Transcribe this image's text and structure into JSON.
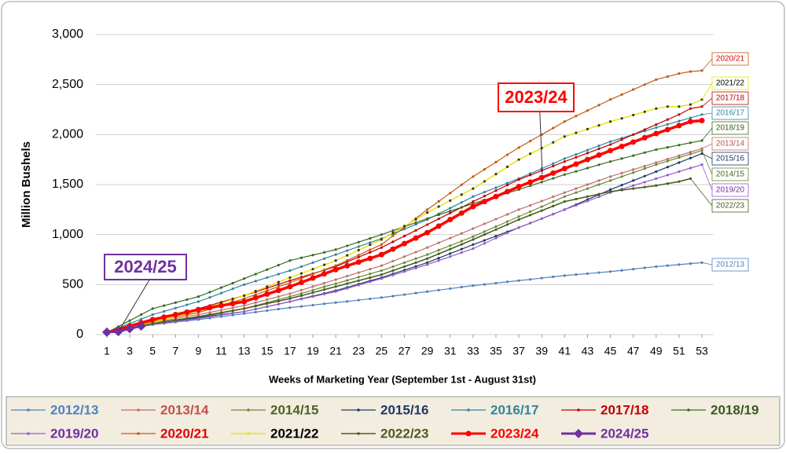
{
  "chart_data": {
    "type": "line",
    "y_label": "Million Bushels",
    "x_label": "Weeks of Marketing Year (September 1st - August 31st)",
    "xlim": [
      0,
      54
    ],
    "ylim": [
      0,
      3000
    ],
    "yticks": [
      0,
      500,
      {
        "value": 1000,
        "label": "1,000"
      },
      {
        "value": 1500,
        "label": "1,500"
      },
      {
        "value": 2000,
        "label": "2,000"
      },
      {
        "value": 2500,
        "label": "2,500"
      },
      {
        "value": 3000,
        "label": "3,000"
      }
    ],
    "xticks": [
      1,
      3,
      5,
      7,
      9,
      11,
      13,
      15,
      17,
      19,
      21,
      23,
      25,
      27,
      29,
      31,
      33,
      35,
      37,
      39,
      41,
      43,
      45,
      47,
      49,
      51,
      53
    ],
    "grid": true,
    "x": [
      1,
      2,
      3,
      4,
      5,
      6,
      7,
      8,
      9,
      10,
      11,
      12,
      13,
      14,
      15,
      16,
      17,
      18,
      19,
      20,
      21,
      22,
      23,
      24,
      25,
      26,
      27,
      28,
      29,
      30,
      31,
      32,
      33,
      34,
      35,
      36,
      37,
      38,
      39,
      40,
      41,
      42,
      43,
      44,
      45,
      46,
      47,
      48,
      49,
      50,
      51,
      52,
      53
    ],
    "series": [
      {
        "name": "2012/13",
        "color": "#4f81bd",
        "label_color": "#4f81bd",
        "marker": "dot",
        "width": 1.2,
        "values": [
          20,
          40,
          60,
          80,
          100,
          112,
          125,
          138,
          150,
          165,
          180,
          195,
          210,
          225,
          240,
          255,
          270,
          282,
          295,
          308,
          320,
          332,
          345,
          358,
          370,
          385,
          400,
          415,
          430,
          445,
          460,
          475,
          490,
          502,
          515,
          528,
          540,
          552,
          565,
          578,
          590,
          600,
          610,
          620,
          630,
          642,
          655,
          668,
          680,
          690,
          700,
          710,
          720
        ]
      },
      {
        "name": "2013/14",
        "color": "#c0706a",
        "label_color": "#c0504d",
        "marker": "dot",
        "width": 1.2,
        "values": [
          20,
          45,
          70,
          95,
          120,
          140,
          160,
          180,
          200,
          222,
          245,
          268,
          290,
          320,
          350,
          380,
          410,
          445,
          480,
          515,
          550,
          585,
          620,
          655,
          690,
          735,
          780,
          825,
          870,
          918,
          965,
          1012,
          1060,
          1108,
          1155,
          1202,
          1250,
          1292,
          1335,
          1378,
          1420,
          1460,
          1500,
          1540,
          1580,
          1615,
          1650,
          1685,
          1720,
          1755,
          1790,
          1825,
          1860
        ]
      },
      {
        "name": "2014/15",
        "color": "#6a8a3a",
        "label_color": "#4f6228",
        "marker": "dot",
        "width": 1.2,
        "values": [
          20,
          42,
          65,
          88,
          110,
          125,
          140,
          155,
          170,
          192,
          215,
          238,
          260,
          290,
          320,
          350,
          380,
          412,
          445,
          478,
          510,
          542,
          575,
          608,
          640,
          680,
          720,
          760,
          800,
          845,
          890,
          935,
          980,
          1030,
          1080,
          1130,
          1180,
          1230,
          1280,
          1330,
          1380,
          1420,
          1460,
          1500,
          1540,
          1580,
          1620,
          1660,
          1700,
          1735,
          1770,
          1805,
          1840
        ]
      },
      {
        "name": "2015/16",
        "color": "#1f3864",
        "label_color": "#1f3864",
        "marker": "dot",
        "width": 1.2,
        "values": [
          20,
          42,
          65,
          88,
          110,
          125,
          140,
          155,
          170,
          185,
          200,
          215,
          230,
          255,
          280,
          305,
          330,
          358,
          385,
          412,
          440,
          472,
          505,
          538,
          570,
          608,
          645,
          682,
          720,
          765,
          810,
          855,
          900,
          942,
          985,
          1028,
          1070,
          1115,
          1160,
          1205,
          1250,
          1300,
          1350,
          1400,
          1450,
          1495,
          1540,
          1585,
          1630,
          1675,
          1720,
          1765,
          1810
        ]
      },
      {
        "name": "2016/17",
        "color": "#31859c",
        "label_color": "#31849b",
        "marker": "dot",
        "width": 1.2,
        "values": [
          20,
          65,
          110,
          155,
          200,
          232,
          265,
          298,
          330,
          372,
          415,
          458,
          500,
          535,
          570,
          605,
          640,
          680,
          720,
          760,
          800,
          840,
          880,
          920,
          960,
          1008,
          1055,
          1102,
          1150,
          1208,
          1265,
          1322,
          1380,
          1425,
          1470,
          1515,
          1560,
          1610,
          1660,
          1710,
          1760,
          1802,
          1845,
          1888,
          1930,
          1965,
          2000,
          2035,
          2070,
          2102,
          2135,
          2168,
          2200
        ]
      },
      {
        "name": "2017/18",
        "color": "#c00000",
        "label_color": "#c00000",
        "marker": "dot",
        "width": 1.2,
        "values": [
          20,
          50,
          80,
          110,
          140,
          170,
          200,
          230,
          260,
          292,
          325,
          358,
          390,
          428,
          465,
          502,
          540,
          575,
          610,
          645,
          680,
          728,
          775,
          822,
          870,
          928,
          985,
          1042,
          1100,
          1158,
          1215,
          1272,
          1330,
          1385,
          1440,
          1495,
          1550,
          1595,
          1640,
          1685,
          1730,
          1772,
          1815,
          1858,
          1900,
          1950,
          2000,
          2050,
          2100,
          2150,
          2200,
          2260,
          2280
        ]
      },
      {
        "name": "2018/19",
        "color": "#3a6b1f",
        "label_color": "#3a5a1f",
        "marker": "dot",
        "width": 1.2,
        "values": [
          20,
          80,
          140,
          200,
          260,
          290,
          320,
          350,
          380,
          425,
          470,
          515,
          560,
          605,
          650,
          695,
          740,
          768,
          795,
          822,
          850,
          888,
          925,
          962,
          1000,
          1040,
          1080,
          1120,
          1160,
          1198,
          1235,
          1272,
          1310,
          1345,
          1380,
          1415,
          1450,
          1488,
          1525,
          1562,
          1600,
          1632,
          1665,
          1698,
          1730,
          1760,
          1790,
          1820,
          1850,
          1872,
          1895,
          1918,
          1940
        ]
      },
      {
        "name": "2019/20",
        "color": "#9b59d0",
        "label_color": "#7030a0",
        "marker": "dot",
        "width": 1.2,
        "values": [
          20,
          40,
          60,
          80,
          100,
          115,
          130,
          145,
          160,
          178,
          195,
          212,
          230,
          255,
          280,
          305,
          330,
          355,
          380,
          405,
          430,
          462,
          495,
          528,
          560,
          595,
          630,
          665,
          700,
          740,
          780,
          820,
          860,
          912,
          965,
          1018,
          1070,
          1115,
          1160,
          1205,
          1250,
          1292,
          1335,
          1378,
          1420,
          1455,
          1490,
          1525,
          1560,
          1595,
          1630,
          1665,
          1700
        ]
      },
      {
        "name": "2020/21",
        "color": "#c55a11",
        "label_color": "#e00000",
        "marker": "dot",
        "width": 1.2,
        "values": [
          20,
          48,
          75,
          102,
          130,
          152,
          175,
          198,
          220,
          255,
          290,
          325,
          360,
          400,
          440,
          480,
          520,
          562,
          605,
          648,
          690,
          742,
          795,
          848,
          900,
          988,
          1075,
          1162,
          1250,
          1332,
          1415,
          1498,
          1580,
          1652,
          1725,
          1798,
          1870,
          1935,
          2000,
          2065,
          2130,
          2185,
          2240,
          2295,
          2350,
          2400,
          2450,
          2500,
          2550,
          2580,
          2610,
          2630,
          2640
        ]
      },
      {
        "name": "2021/22",
        "color": "#e6e600",
        "label_color": "#000000",
        "marker": "dot",
        "width": 1.5,
        "values": [
          20,
          45,
          70,
          95,
          120,
          150,
          180,
          210,
          240,
          278,
          315,
          352,
          390,
          435,
          480,
          525,
          570,
          612,
          655,
          698,
          740,
          792,
          845,
          898,
          950,
          1018,
          1085,
          1152,
          1220,
          1280,
          1340,
          1400,
          1460,
          1532,
          1605,
          1678,
          1750,
          1808,
          1865,
          1922,
          1980,
          2018,
          2055,
          2092,
          2130,
          2162,
          2195,
          2228,
          2260,
          2280,
          2280,
          2300,
          2350
        ]
      },
      {
        "name": "2022/23",
        "color": "#4b5e1f",
        "label_color": "#4b5e1f",
        "marker": "dot",
        "width": 1.6,
        "values": [
          20,
          42,
          65,
          88,
          110,
          128,
          145,
          162,
          180,
          200,
          220,
          240,
          260,
          285,
          310,
          335,
          360,
          390,
          420,
          450,
          480,
          510,
          540,
          570,
          600,
          640,
          680,
          720,
          760,
          808,
          855,
          902,
          950,
          1000,
          1050,
          1100,
          1150,
          1195,
          1240,
          1285,
          1330,
          1355,
          1380,
          1405,
          1430,
          1445,
          1460,
          1475,
          1490,
          1510,
          1530,
          1560,
          null
        ]
      },
      {
        "name": "2023/24",
        "color": "#ff0000",
        "label_color": "#ff0000",
        "marker": "dot",
        "width": 3.5,
        "values": [
          20,
          52,
          85,
          118,
          150,
          175,
          200,
          225,
          250,
          270,
          290,
          310,
          330,
          368,
          405,
          442,
          480,
          522,
          565,
          608,
          650,
          688,
          725,
          762,
          800,
          855,
          910,
          965,
          1020,
          1085,
          1150,
          1215,
          1280,
          1330,
          1380,
          1430,
          1480,
          1525,
          1570,
          1615,
          1660,
          1705,
          1750,
          1795,
          1840,
          1882,
          1925,
          1968,
          2010,
          2050,
          2090,
          2130,
          2140
        ]
      },
      {
        "name": "2024/25",
        "color": "#7030a0",
        "label_color": "#7030a0",
        "marker": "diamond",
        "width": 3,
        "values": [
          25,
          30,
          60,
          85,
          null,
          null,
          null,
          null,
          null,
          null,
          null,
          null,
          null,
          null,
          null,
          null,
          null,
          null,
          null,
          null,
          null,
          null,
          null,
          null,
          null,
          null,
          null,
          null,
          null,
          null,
          null,
          null,
          null,
          null,
          null,
          null,
          null,
          null,
          null,
          null,
          null,
          null,
          null,
          null,
          null,
          null,
          null,
          null,
          null,
          null,
          null,
          null,
          null
        ]
      }
    ]
  }
}
